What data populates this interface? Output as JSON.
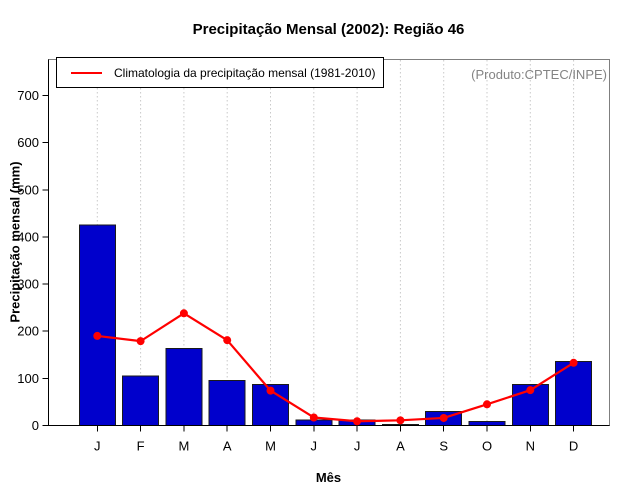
{
  "title": "Precipitação Mensal (2002): Região 46",
  "annotation": "(Produto:CPTEC/INPE)",
  "legend": {
    "label": "Climatologia da precipitação mensal (1981-2010)"
  },
  "axes": {
    "xlabel": "Mês",
    "ylabel": "Precipitação mensal (mm)"
  },
  "colors": {
    "bar_fill": "#0000CC",
    "bar_border": "#1a1a1a",
    "line": "#FF0000",
    "grid": "#c9c9c9",
    "box": "#7f7f7f",
    "axis": "#000000",
    "annotation_text": "#848484"
  },
  "chart_data": {
    "type": "bar",
    "title": "Precipitação Mensal (2002): Região 46",
    "xlabel": "Mês",
    "ylabel": "Precipitação mensal (mm)",
    "categories": [
      "J",
      "F",
      "M",
      "A",
      "M",
      "J",
      "J",
      "A",
      "S",
      "O",
      "N",
      "D"
    ],
    "y_ticks": [
      0,
      100,
      200,
      300,
      400,
      500,
      600,
      700
    ],
    "ylim": [
      0,
      700
    ],
    "grid": "vertical-dotted",
    "legend_position": "top-left",
    "series": [
      {
        "name": "Precipitação mensal 2002",
        "type": "bar",
        "values": [
          425,
          105,
          163,
          95,
          87,
          12,
          12,
          2,
          30,
          8,
          87,
          136
        ]
      },
      {
        "name": "Climatologia da precipitação mensal (1981-2010)",
        "type": "line",
        "values": [
          190,
          179,
          238,
          181,
          74,
          17,
          9,
          11,
          16,
          45,
          75,
          133
        ]
      }
    ]
  }
}
